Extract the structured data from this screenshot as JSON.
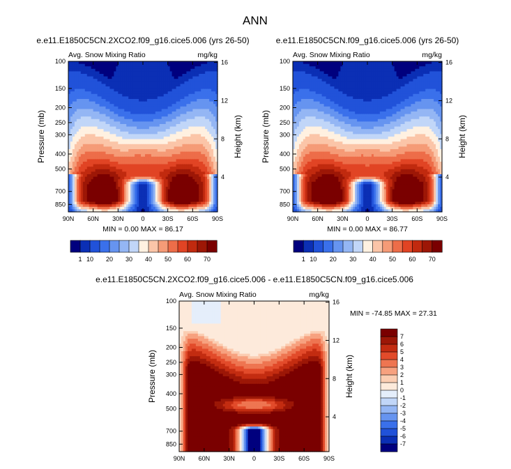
{
  "main_title": "ANN",
  "colors": {
    "full_palette": [
      "#00007e",
      "#0b2fb5",
      "#2152d9",
      "#3a70eb",
      "#6694f0",
      "#94b6f4",
      "#c1d6f8",
      "#fff1e1",
      "#fbc5a8",
      "#f59b77",
      "#ed6d49",
      "#e14424",
      "#c12a0f",
      "#9d1706",
      "#7a0000"
    ],
    "diff_palette": [
      "#00007e",
      "#0b2fb5",
      "#2152d9",
      "#3a70eb",
      "#6694f0",
      "#94b6f4",
      "#c1d6f8",
      "#e5eefb",
      "#fdeadb",
      "#fbcdb2",
      "#f7a17f",
      "#ee7551",
      "#e24b2a",
      "#c32c11",
      "#9c1707",
      "#7a0000"
    ]
  },
  "chart_data": [
    {
      "type": "heatmap",
      "panel_title": "e.e11.E1850C5CN.2XCO2.f09_g16.cice5.006 (yrs 26-50)",
      "left_label": "Avg. Snow Mixing Ratio",
      "right_label": "mg/kg",
      "xlabel": "",
      "ylabel": "Pressure (mb)",
      "ylabel_right": "Height (km)",
      "x_tick_labels": [
        "90N",
        "60N",
        "30N",
        "0",
        "30S",
        "60S",
        "90S"
      ],
      "x_tick_values": [
        90,
        60,
        30,
        0,
        -30,
        -60,
        -90
      ],
      "y_tick_labels": [
        "100",
        "150",
        "200",
        "250",
        "300",
        "400",
        "500",
        "700",
        "850"
      ],
      "y_tick_values": [
        100,
        150,
        200,
        250,
        300,
        400,
        500,
        700,
        850
      ],
      "y_range": [
        100,
        950
      ],
      "height_tick_labels": [
        "16",
        "12",
        "8",
        "4"
      ],
      "height_tick_values": [
        16,
        12,
        8,
        4
      ],
      "minmax_text": "MIN =   0.00  MAX =  86.17",
      "min": 0.0,
      "max": 86.17,
      "colorbar_labels": [
        "1",
        "10",
        "20",
        "30",
        "40",
        "50",
        "60",
        "70"
      ],
      "levels": [
        1,
        5,
        10,
        15,
        20,
        25,
        30,
        35,
        40,
        45,
        50,
        55,
        60,
        65,
        70
      ],
      "features": {
        "lower_peak": 60,
        "upper_peak": 38,
        "sfc_min": 0
      }
    },
    {
      "type": "heatmap",
      "panel_title": "e.e11.E1850C5CN.f09_g16.cice5.006 (yrs 26-50)",
      "left_label": "Avg. Snow Mixing Ratio",
      "right_label": "mg/kg",
      "xlabel": "",
      "ylabel": "Pressure (mb)",
      "ylabel_right": "Height (km)",
      "x_tick_labels": [
        "90N",
        "60N",
        "30N",
        "0",
        "30S",
        "60S",
        "90S"
      ],
      "x_tick_values": [
        90,
        60,
        30,
        0,
        -30,
        -60,
        -90
      ],
      "y_tick_labels": [
        "100",
        "150",
        "200",
        "250",
        "300",
        "400",
        "500",
        "700",
        "850"
      ],
      "y_tick_values": [
        100,
        150,
        200,
        250,
        300,
        400,
        500,
        700,
        850
      ],
      "y_range": [
        100,
        950
      ],
      "height_tick_labels": [
        "16",
        "12",
        "8",
        "4"
      ],
      "height_tick_values": [
        16,
        12,
        8,
        4
      ],
      "minmax_text": "MIN =   0.00  MAX =  86.77",
      "min": 0.0,
      "max": 86.77,
      "colorbar_labels": [
        "1",
        "10",
        "20",
        "30",
        "40",
        "50",
        "60",
        "70"
      ],
      "levels": [
        1,
        5,
        10,
        15,
        20,
        25,
        30,
        35,
        40,
        45,
        50,
        55,
        60,
        65,
        70
      ],
      "features": {
        "lower_peak": 62,
        "upper_peak": 36,
        "sfc_min": 0
      }
    },
    {
      "type": "heatmap",
      "panel_title": "e.e11.E1850C5CN.2XCO2.f09_g16.cice5.006 - e.e11.E1850C5CN.f09_g16.cice5.006",
      "left_label": "Avg. Snow Mixing Ratio",
      "right_label": "mg/kg",
      "xlabel": "",
      "ylabel": "Pressure (mb)",
      "ylabel_right": "Height (km)",
      "x_tick_labels": [
        "90N",
        "60N",
        "30N",
        "0",
        "30S",
        "60S",
        "90S"
      ],
      "x_tick_values": [
        90,
        60,
        30,
        0,
        -30,
        -60,
        -90
      ],
      "y_tick_labels": [
        "100",
        "150",
        "200",
        "250",
        "300",
        "400",
        "500",
        "700",
        "850"
      ],
      "y_tick_values": [
        100,
        150,
        200,
        250,
        300,
        400,
        500,
        700,
        850
      ],
      "y_range": [
        100,
        950
      ],
      "height_tick_labels": [
        "16",
        "12",
        "8",
        "4"
      ],
      "height_tick_values": [
        16,
        12,
        8,
        4
      ],
      "minmax_text": "MIN = -74.85  MAX =  27.31",
      "min": -74.85,
      "max": 27.31,
      "colorbar_labels": [
        "7",
        "6",
        "5",
        "4",
        "3",
        "2",
        "1",
        "0",
        "-1",
        "-2",
        "-3",
        "-4",
        "-5",
        "-6",
        "-7"
      ],
      "levels": [
        -7,
        -6,
        -5,
        -4,
        -3,
        -2,
        -1,
        0,
        1,
        2,
        3,
        4,
        5,
        6,
        7
      ],
      "features": {
        "upper_band": 8.5,
        "mid_band": 6.5,
        "sfc_min": -10
      }
    }
  ]
}
